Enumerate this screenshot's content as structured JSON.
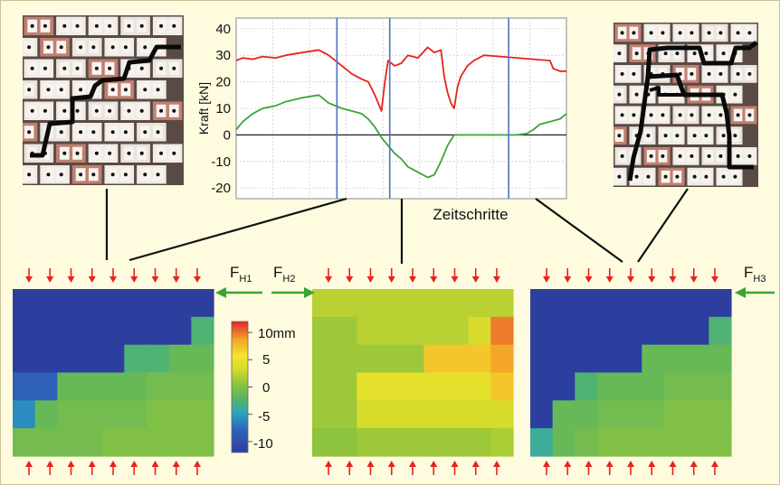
{
  "chart_data": {
    "type": "line",
    "title": "",
    "xlabel": "Zeitschritte",
    "ylabel": "Kraft [kN]",
    "xlim": [
      0,
      100
    ],
    "ylim": [
      -24,
      44
    ],
    "yticks": [
      -20,
      -10,
      0,
      10,
      20,
      30,
      40
    ],
    "grid": true,
    "series": [
      {
        "color": "#e8231b",
        "x": [
          0,
          2,
          5,
          8,
          12,
          15,
          20,
          25,
          28,
          32,
          35,
          38,
          40,
          42,
          44,
          45,
          46,
          47,
          48,
          50,
          52,
          55,
          58,
          60,
          62,
          63,
          64,
          65,
          66,
          67,
          68,
          69,
          70,
          72,
          75,
          80,
          85,
          90,
          95,
          96,
          98,
          100
        ],
        "y": [
          28,
          29,
          28.5,
          29.5,
          29,
          30,
          31,
          32,
          30,
          26,
          23,
          21,
          20,
          15,
          9,
          20,
          28,
          27,
          26,
          27,
          30,
          29,
          33,
          31,
          32,
          22,
          16,
          12,
          10,
          18,
          22,
          24,
          26,
          28,
          30,
          29.5,
          29,
          28.5,
          28,
          25,
          24,
          24
        ]
      },
      {
        "color": "#3aa537",
        "x": [
          0,
          2,
          5,
          8,
          12,
          15,
          20,
          25,
          28,
          32,
          35,
          38,
          40,
          42,
          44,
          46,
          48,
          50,
          52,
          55,
          58,
          60,
          62,
          64,
          66,
          68,
          70,
          72,
          75,
          80,
          85,
          88,
          90,
          92,
          95,
          98,
          100
        ],
        "y": [
          2,
          5,
          8,
          10,
          11,
          12.5,
          14,
          15,
          12,
          10,
          9,
          8,
          6,
          3,
          -1,
          -4,
          -7,
          -9,
          -12,
          -14,
          -16,
          -15,
          -10,
          -4,
          0,
          0,
          0,
          0,
          0,
          0,
          0,
          0.5,
          2,
          4,
          5,
          6,
          8
        ]
      }
    ],
    "markers": [
      30.5,
      46.5,
      82.5
    ],
    "scale_bar": {
      "ticks": [
        "10mm",
        "5",
        "0",
        "-5",
        "-10"
      ],
      "values": [
        10,
        5,
        0,
        -5,
        -10
      ]
    },
    "force_labels": {
      "f1": {
        "base": "F",
        "sub": "H1"
      },
      "f2": {
        "base": "F",
        "sub": "H2"
      },
      "f3": {
        "base": "F",
        "sub": "H3"
      }
    },
    "heatmaps": [
      {
        "name": "displacement-field-1",
        "values": [
          [
            -10,
            -10,
            -10,
            -10,
            -10,
            -10,
            -10,
            -10,
            -10
          ],
          [
            -10,
            -10,
            -10,
            -10,
            -10,
            -10,
            -10,
            -10,
            -2
          ],
          [
            -10,
            -10,
            -10,
            -10,
            -10,
            -2,
            -2,
            -1,
            -1
          ],
          [
            -7,
            -7,
            -1,
            -1,
            -1,
            -1,
            -0.5,
            -0.5,
            -0.5
          ],
          [
            -5,
            -1,
            -0.5,
            -0.5,
            -0.5,
            -0.5,
            0,
            0,
            0
          ],
          [
            -0.5,
            -0.5,
            -0.5,
            -0.5,
            0,
            0,
            0,
            0,
            0
          ]
        ]
      },
      {
        "name": "displacement-field-2",
        "values": [
          [
            2,
            2,
            2,
            2,
            2,
            2,
            2,
            2,
            2
          ],
          [
            1,
            1,
            2,
            2,
            2,
            2,
            2,
            3,
            8
          ],
          [
            1,
            1,
            1,
            1,
            1,
            6,
            6,
            6,
            7
          ],
          [
            1,
            1,
            4,
            4,
            4,
            4,
            4,
            4,
            6
          ],
          [
            1,
            1,
            3,
            3,
            3,
            3,
            3,
            3,
            3
          ],
          [
            0.5,
            0.5,
            1,
            1,
            1,
            1,
            1,
            1,
            1.5
          ]
        ]
      },
      {
        "name": "displacement-field-3",
        "values": [
          [
            -10,
            -10,
            -10,
            -10,
            -10,
            -10,
            -10,
            -10,
            -10
          ],
          [
            -10,
            -10,
            -10,
            -10,
            -10,
            -10,
            -10,
            -10,
            -2
          ],
          [
            -10,
            -10,
            -10,
            -10,
            -10,
            -1,
            -1,
            -1,
            -1
          ],
          [
            -10,
            -10,
            -2,
            -1,
            -1,
            -1,
            -0.5,
            -0.5,
            -0.5
          ],
          [
            -10,
            -1,
            -1,
            -0.5,
            -0.5,
            -0.5,
            0,
            0,
            0
          ],
          [
            -3,
            -1,
            -0.5,
            0,
            0,
            0,
            0,
            0,
            0
          ]
        ]
      }
    ]
  }
}
